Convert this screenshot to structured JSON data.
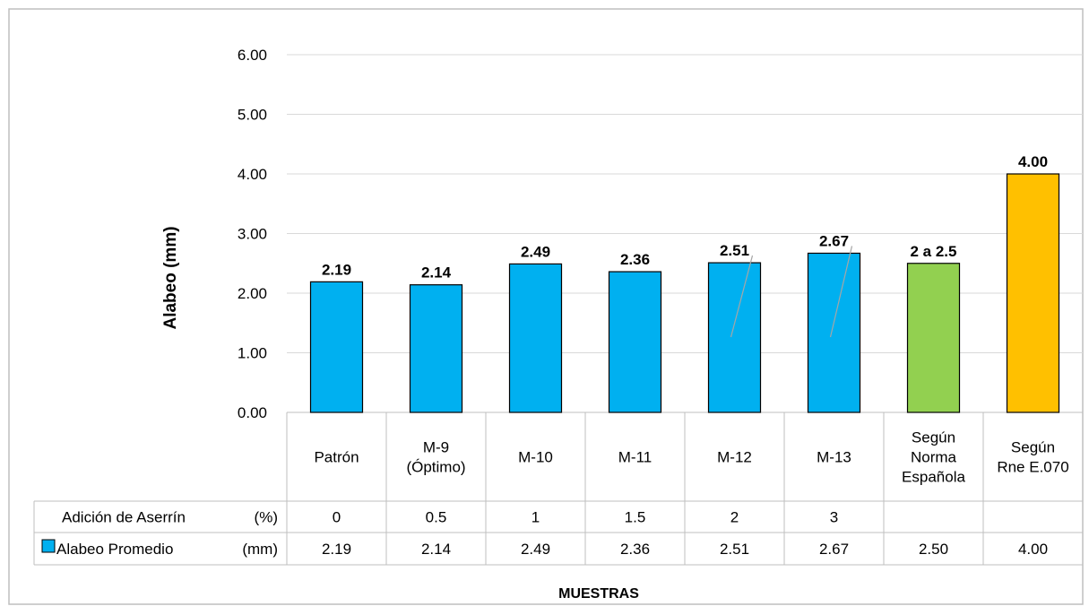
{
  "chart_data": {
    "type": "bar",
    "ylabel": "Alabeo (mm)",
    "xlabel": "MUESTRAS",
    "ylim": [
      0,
      6
    ],
    "yticks": [
      "0.00",
      "1.00",
      "2.00",
      "3.00",
      "4.00",
      "5.00",
      "6.00"
    ],
    "grid": true,
    "categories": [
      [
        "Patrón"
      ],
      [
        "M-9",
        "(Óptimo)"
      ],
      [
        "M-10"
      ],
      [
        "M-11"
      ],
      [
        "M-12"
      ],
      [
        "M-13"
      ],
      [
        "Según",
        "Norma",
        "Española"
      ],
      [
        "Según",
        "Rne E.070"
      ]
    ],
    "values": [
      2.19,
      2.14,
      2.49,
      2.36,
      2.51,
      2.67,
      2.5,
      4.0
    ],
    "data_labels": [
      "2.19",
      "2.14",
      "2.49",
      "2.36",
      "2.51",
      "2.67",
      "2 a 2.5",
      "4.00"
    ],
    "bar_colors": [
      "#00b0f0",
      "#00b0f0",
      "#00b0f0",
      "#00b0f0",
      "#00b0f0",
      "#00b0f0",
      "#92d050",
      "#ffc000"
    ],
    "table": {
      "rows": [
        {
          "label": "Adición de Aserrín",
          "unit": "(%)",
          "legend_marker": false,
          "values": [
            "0",
            "0.5",
            "1",
            "1.5",
            "2",
            "3",
            "",
            ""
          ]
        },
        {
          "label": "Alabeo Promedio",
          "unit": "(mm)",
          "legend_marker": true,
          "legend_color": "#00b0f0",
          "values": [
            "2.19",
            "2.14",
            "2.49",
            "2.36",
            "2.51",
            "2.67",
            "2.50",
            "4.00"
          ]
        }
      ]
    }
  }
}
